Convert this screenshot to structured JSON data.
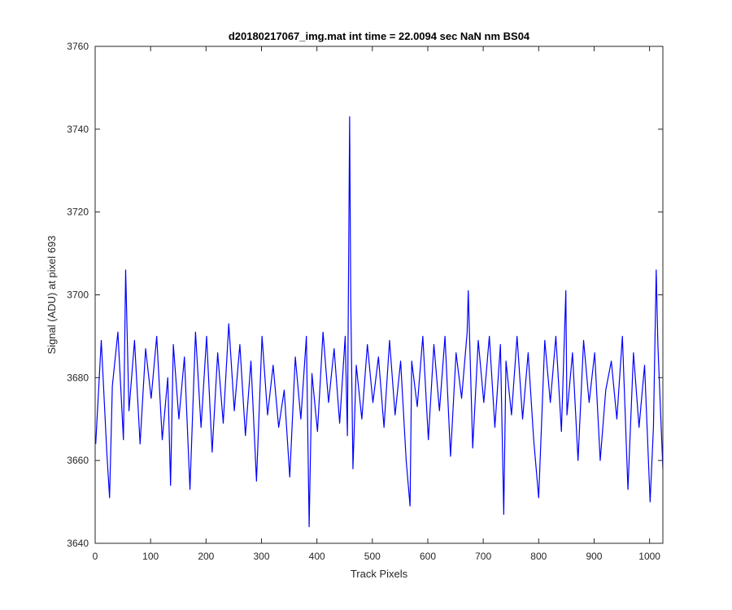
{
  "chart_data": {
    "type": "line",
    "title": "d20180217067_img.mat int time = 22.0094 sec  NaN nm BS04",
    "xlabel": "Track Pixels",
    "ylabel": "Signal (ADU) at pixel 693",
    "xlim": [
      0,
      1024
    ],
    "ylim": [
      3640,
      3760
    ],
    "xticks": [
      0,
      100,
      200,
      300,
      400,
      500,
      600,
      700,
      800,
      900,
      1000
    ],
    "yticks": [
      3640,
      3660,
      3680,
      3700,
      3720,
      3740,
      3760
    ],
    "grid": false,
    "box": true,
    "line_color": "#0000ff",
    "series": [
      {
        "x": [
          1,
          11,
          21,
          26,
          31,
          41,
          51,
          55,
          61,
          71,
          81,
          91,
          101,
          111,
          121,
          131,
          136,
          141,
          151,
          161,
          171,
          181,
          191,
          201,
          211,
          221,
          231,
          241,
          251,
          261,
          271,
          281,
          291,
          301,
          311,
          321,
          331,
          341,
          351,
          361,
          371,
          381,
          386,
          391,
          401,
          411,
          421,
          431,
          441,
          451,
          455,
          459,
          461,
          465,
          471,
          481,
          491,
          501,
          511,
          521,
          531,
          541,
          551,
          561,
          568,
          571,
          581,
          591,
          601,
          611,
          621,
          631,
          641,
          651,
          661,
          671,
          673,
          681,
          691,
          701,
          711,
          721,
          731,
          737,
          741,
          751,
          761,
          771,
          781,
          791,
          800,
          811,
          821,
          831,
          841,
          849,
          851,
          861,
          871,
          881,
          891,
          901,
          911,
          921,
          931,
          941,
          951,
          961,
          971,
          981,
          991,
          1001,
          1007,
          1012,
          1015,
          1024
        ],
        "y": [
          3664,
          3689,
          3662,
          3651,
          3678,
          3691,
          3665,
          3706,
          3672,
          3689,
          3664,
          3687,
          3675,
          3690,
          3665,
          3680,
          3654,
          3688,
          3670,
          3685,
          3653,
          3691,
          3668,
          3690,
          3662,
          3686,
          3669,
          3693,
          3672,
          3688,
          3666,
          3684,
          3655,
          3690,
          3671,
          3683,
          3668,
          3677,
          3656,
          3685,
          3670,
          3690,
          3644,
          3681,
          3667,
          3691,
          3674,
          3687,
          3669,
          3690,
          3666,
          3743,
          3699,
          3658,
          3683,
          3670,
          3688,
          3674,
          3685,
          3668,
          3689,
          3671,
          3684,
          3660,
          3649,
          3684,
          3673,
          3690,
          3665,
          3688,
          3672,
          3690,
          3661,
          3686,
          3675,
          3691,
          3701,
          3663,
          3689,
          3674,
          3690,
          3668,
          3688,
          3647,
          3684,
          3671,
          3690,
          3670,
          3686,
          3665,
          3651,
          3689,
          3674,
          3690,
          3667,
          3701,
          3671,
          3686,
          3660,
          3689,
          3674,
          3686,
          3660,
          3677,
          3684,
          3670,
          3690,
          3653,
          3686,
          3668,
          3683,
          3650,
          3668,
          3706,
          3688,
          3658
        ]
      }
    ]
  }
}
